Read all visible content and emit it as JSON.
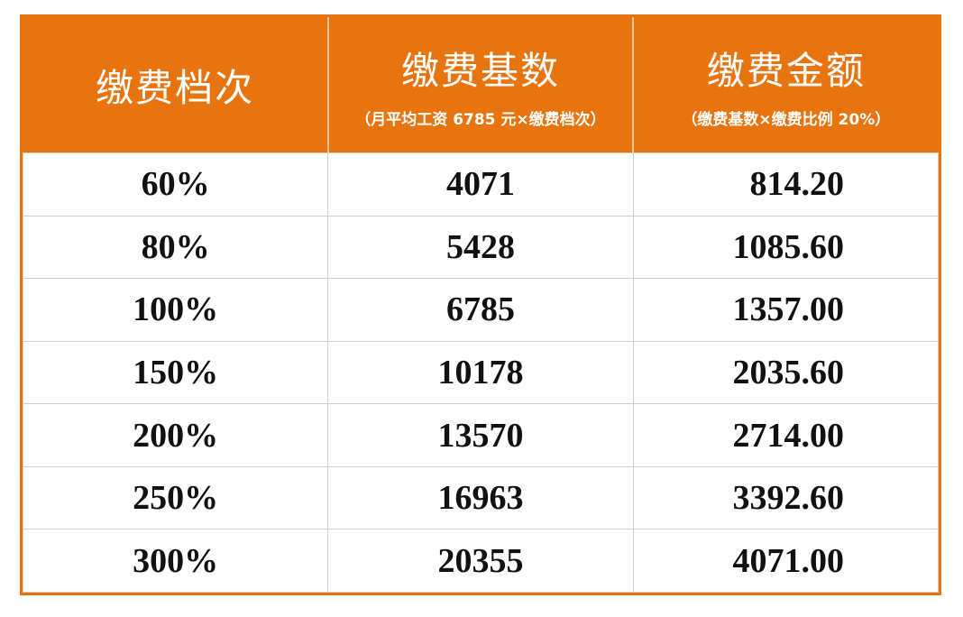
{
  "table": {
    "header": [
      {
        "title": "缴费档次"
      },
      {
        "title": "缴费基数",
        "subtitle": "（月平均工资 6785 元×缴费档次）"
      },
      {
        "title": "缴费金额",
        "subtitle": "（缴费基数×缴费比例 20%）"
      }
    ],
    "rows": [
      [
        "60%",
        "4071",
        "814.20"
      ],
      [
        "80%",
        "5428",
        "1085.60"
      ],
      [
        "100%",
        "6785",
        "1357.00"
      ],
      [
        "150%",
        "10178",
        "2035.60"
      ],
      [
        "200%",
        "13570",
        "2714.00"
      ],
      [
        "250%",
        "16963",
        "3392.60"
      ],
      [
        "300%",
        "20355",
        "4071.00"
      ]
    ]
  }
}
